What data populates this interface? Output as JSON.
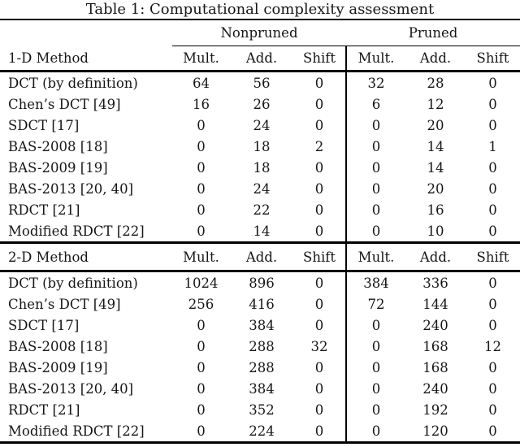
{
  "title": "Table 1: Computational complexity assessment",
  "table": {
    "group_headers": {
      "nonpruned": "Nonpruned",
      "pruned": "Pruned"
    },
    "sections": [
      {
        "label": "1-D Method",
        "columns": [
          "Mult.",
          "Add.",
          "Shift",
          "Mult.",
          "Add.",
          "Shift"
        ],
        "rows": [
          {
            "method": "DCT (by definition)",
            "values": [
              "64",
              "56",
              "0",
              "32",
              "28",
              "0"
            ]
          },
          {
            "method": "Chen’s DCT [49]",
            "values": [
              "16",
              "26",
              "0",
              "6",
              "12",
              "0"
            ]
          },
          {
            "method": "SDCT [17]",
            "values": [
              "0",
              "24",
              "0",
              "0",
              "20",
              "0"
            ]
          },
          {
            "method": "BAS-2008 [18]",
            "values": [
              "0",
              "18",
              "2",
              "0",
              "14",
              "1"
            ]
          },
          {
            "method": "BAS-2009 [19]",
            "values": [
              "0",
              "18",
              "0",
              "0",
              "14",
              "0"
            ]
          },
          {
            "method": "BAS-2013 [20, 40]",
            "values": [
              "0",
              "24",
              "0",
              "0",
              "20",
              "0"
            ]
          },
          {
            "method": "RDCT [21]",
            "values": [
              "0",
              "22",
              "0",
              "0",
              "16",
              "0"
            ]
          },
          {
            "method": "Modified RDCT [22]",
            "values": [
              "0",
              "14",
              "0",
              "0",
              "10",
              "0"
            ],
            "bold_value_index": 4
          }
        ]
      },
      {
        "label": "2-D Method",
        "columns": [
          "Mult.",
          "Add.",
          "Shift",
          "Mult.",
          "Add.",
          "Shift"
        ],
        "rows": [
          {
            "method": "DCT (by definition)",
            "values": [
              "1024",
              "896",
              "0",
              "384",
              "336",
              "0"
            ]
          },
          {
            "method": "Chen’s DCT [49]",
            "values": [
              "256",
              "416",
              "0",
              "72",
              "144",
              "0"
            ]
          },
          {
            "method": "SDCT [17]",
            "values": [
              "0",
              "384",
              "0",
              "0",
              "240",
              "0"
            ]
          },
          {
            "method": "BAS-2008 [18]",
            "values": [
              "0",
              "288",
              "32",
              "0",
              "168",
              "12"
            ]
          },
          {
            "method": "BAS-2009 [19]",
            "values": [
              "0",
              "288",
              "0",
              "0",
              "168",
              "0"
            ]
          },
          {
            "method": "BAS-2013 [20, 40]",
            "values": [
              "0",
              "384",
              "0",
              "0",
              "240",
              "0"
            ]
          },
          {
            "method": "RDCT [21]",
            "values": [
              "0",
              "352",
              "0",
              "0",
              "192",
              "0"
            ]
          },
          {
            "method": "Modified RDCT [22]",
            "values": [
              "0",
              "224",
              "0",
              "0",
              "120",
              "0"
            ],
            "bold_value_index": 4
          }
        ]
      }
    ],
    "rule_color": "#000000",
    "text_color": "#161616"
  }
}
